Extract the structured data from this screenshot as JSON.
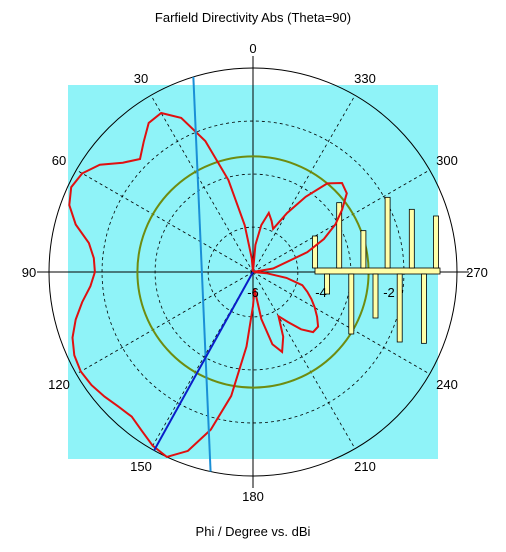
{
  "chart_data": {
    "type": "polar",
    "title": "Farfield Directivity Abs (Theta=90)",
    "xlabel": "Phi / Degree vs. dBi",
    "angle_direction": "counterclockwise",
    "zero_at": "top",
    "angle_ticks": [
      0,
      30,
      60,
      90,
      120,
      150,
      180,
      210,
      240,
      270,
      300,
      330
    ],
    "radial_range_dbi": [
      -6,
      0
    ],
    "radial_ticks": [
      -6,
      -4,
      -2
    ],
    "colors": {
      "plot_background": "#8ff3f8",
      "pattern": "#e01010",
      "main_lobe_beam": "#1a8fd6",
      "main_lobe_direction": "#0a1ec8",
      "reference_circle": "#6e8c10",
      "side_lobe_bars": "#ffffa8"
    },
    "series": [
      {
        "type": "pattern",
        "points": [
          [
            0,
            -6.0
          ],
          [
            5,
            -5.6
          ],
          [
            10,
            -4.6
          ],
          [
            15,
            -3.2
          ],
          [
            20,
            -1.9
          ],
          [
            25,
            -1.0
          ],
          [
            30,
            -0.6
          ],
          [
            35,
            -0.65
          ],
          [
            40,
            -1.0
          ],
          [
            45,
            -1.3
          ],
          [
            50,
            -1.0
          ],
          [
            55,
            -0.5
          ],
          [
            60,
            -0.2
          ],
          [
            65,
            -0.1
          ],
          [
            70,
            -0.25
          ],
          [
            75,
            -0.6
          ],
          [
            80,
            -1.1
          ],
          [
            85,
            -1.3
          ],
          [
            90,
            -1.35
          ],
          [
            95,
            -1.2
          ],
          [
            100,
            -0.9
          ],
          [
            105,
            -0.6
          ],
          [
            110,
            -0.35
          ],
          [
            115,
            -0.2
          ],
          [
            120,
            -0.15
          ],
          [
            125,
            -0.2
          ],
          [
            130,
            -0.3
          ],
          [
            135,
            -0.4
          ],
          [
            140,
            -0.45
          ],
          [
            145,
            -0.3
          ],
          [
            150,
            -0.1
          ],
          [
            155,
            0.0
          ],
          [
            160,
            -0.4
          ],
          [
            165,
            -1.2
          ],
          [
            170,
            -2.3
          ],
          [
            175,
            -3.8
          ],
          [
            180,
            -5.0
          ],
          [
            185,
            -5.5
          ],
          [
            190,
            -4.6
          ],
          [
            195,
            -3.8
          ],
          [
            200,
            -3.5
          ],
          [
            205,
            -3.9
          ],
          [
            210,
            -4.5
          ],
          [
            215,
            -4.2
          ],
          [
            220,
            -3.8
          ],
          [
            225,
            -3.5
          ],
          [
            230,
            -3.5
          ],
          [
            235,
            -3.7
          ],
          [
            240,
            -3.9
          ],
          [
            245,
            -4.1
          ],
          [
            250,
            -4.3
          ],
          [
            255,
            -4.5
          ],
          [
            260,
            -5.0
          ],
          [
            265,
            -5.6
          ],
          [
            270,
            -6.0
          ],
          [
            280,
            -5.4
          ],
          [
            290,
            -4.3
          ],
          [
            295,
            -3.7
          ],
          [
            300,
            -3.2
          ],
          [
            305,
            -2.8
          ],
          [
            310,
            -2.4
          ],
          [
            315,
            -2.3
          ],
          [
            320,
            -2.6
          ],
          [
            325,
            -3.3
          ],
          [
            330,
            -4.0
          ],
          [
            335,
            -4.6
          ],
          [
            340,
            -4.4
          ],
          [
            345,
            -4.2
          ],
          [
            350,
            -4.6
          ],
          [
            355,
            -5.2
          ],
          [
            360,
            -6.0
          ]
        ]
      }
    ],
    "main_lobe": {
      "direction_deg": 151,
      "beam_edges_deg": [
        17,
        168
      ]
    },
    "reference_circle_dbi": -2.6,
    "side_lobe_bar_levels_dbi": [
      -3.6,
      -4.5,
      -1.1,
      -1.5,
      -3.2,
      -2.7,
      -0.7,
      -0.9,
      -1.6,
      -0.8,
      -2.1
    ]
  }
}
